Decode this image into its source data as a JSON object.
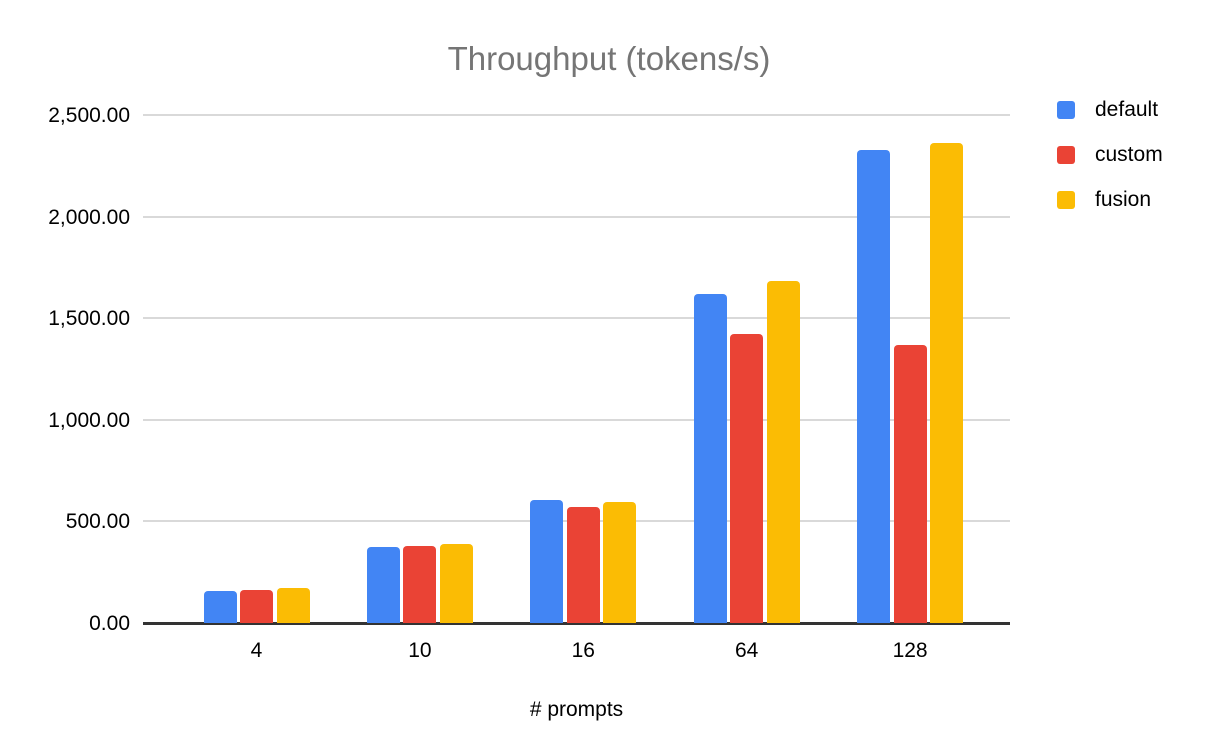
{
  "chart_data": {
    "type": "bar",
    "title": "Throughput (tokens/s)",
    "xlabel": "# prompts",
    "ylabel": "",
    "categories": [
      "4",
      "10",
      "16",
      "64",
      "128"
    ],
    "series": [
      {
        "name": "default",
        "color": "#4285F4",
        "values": [
          157,
          374,
          607,
          1617,
          2330
        ]
      },
      {
        "name": "custom",
        "color": "#EA4335",
        "values": [
          161,
          378,
          570,
          1421,
          1370
        ]
      },
      {
        "name": "fusion",
        "color": "#FBBC04",
        "values": [
          172,
          388,
          596,
          1684,
          2360
        ]
      }
    ],
    "y_axis": {
      "min": 0,
      "max": 2500,
      "step": 500,
      "tick_labels": [
        "0.00",
        "500.00",
        "1,000.00",
        "1,500.00",
        "2,000.00",
        "2,500.00"
      ]
    },
    "grid": true,
    "legend_position": "top-right",
    "colors": {
      "title_text": "#757575",
      "axis_text": "#000000",
      "gridline": "#d9d9d9",
      "baseline": "#333333",
      "background": "#ffffff"
    }
  }
}
